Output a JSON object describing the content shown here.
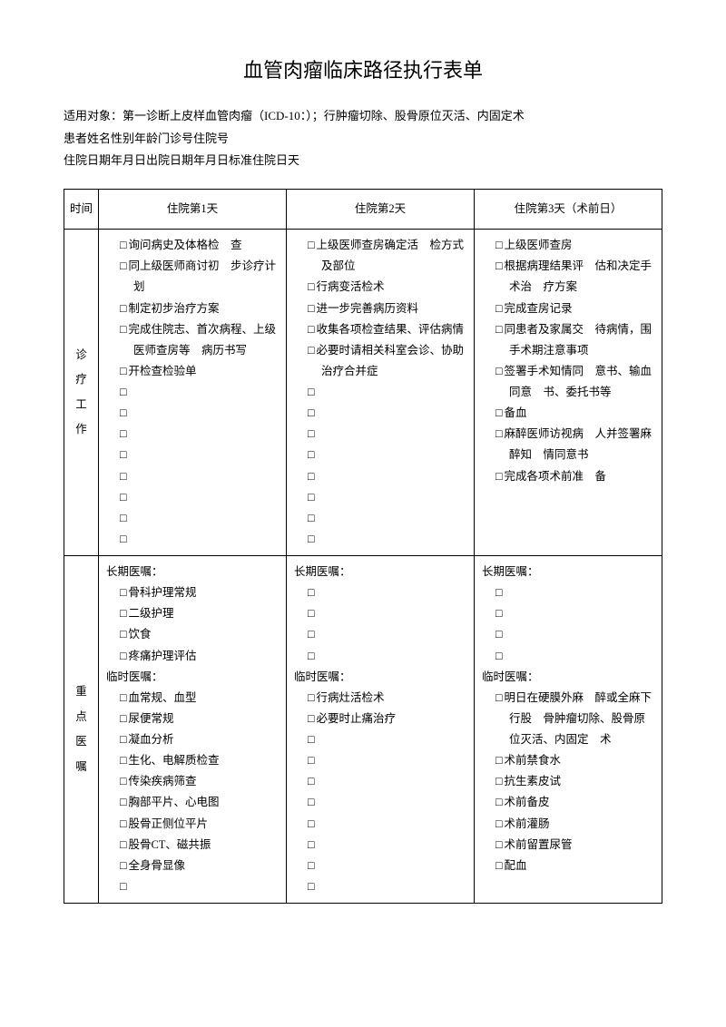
{
  "title": "血管肉瘤临床路径执行表单",
  "intro_lines": [
    "适用对象：第一诊断上皮样血管肉瘤（ICD-10：）；行肿瘤切除、股骨原位灭活、内固定术",
    "患者姓名性别年龄门诊号住院号",
    "住院日期年月日出院日期年月日标准住院日天"
  ],
  "columns": {
    "time": "时间",
    "day1": "住院第1天",
    "day2": "住院第2天",
    "day3": "住院第3天（术前日）"
  },
  "row_labels": {
    "work": [
      "诊",
      "疗",
      "工",
      "作"
    ],
    "orders": [
      "重",
      "点",
      "医",
      "嘱"
    ]
  },
  "work": {
    "day1": [
      {
        "t": "chk",
        "v": "询问病史及体格检　查"
      },
      {
        "t": "chk",
        "v": "同上级医师商讨初　步诊疗计划"
      },
      {
        "t": "chk",
        "v": "制定初步治疗方案"
      },
      {
        "t": "chk",
        "v": "完成住院志、首次病程、上级医师查房等　病历书写"
      },
      {
        "t": "chk",
        "v": "开检查检验单"
      },
      {
        "t": "chk",
        "v": ""
      },
      {
        "t": "chk",
        "v": ""
      },
      {
        "t": "chk",
        "v": ""
      },
      {
        "t": "chk",
        "v": ""
      },
      {
        "t": "chk",
        "v": ""
      },
      {
        "t": "chk",
        "v": ""
      },
      {
        "t": "chk",
        "v": ""
      },
      {
        "t": "chk",
        "v": ""
      }
    ],
    "day2": [
      {
        "t": "chk",
        "v": "上级医师查房确定活　检方式及部位"
      },
      {
        "t": "chk",
        "v": "行病变活检术"
      },
      {
        "t": "chk",
        "v": "进一步完善病历资料"
      },
      {
        "t": "chk",
        "v": "收集各项检查结果、评估病情"
      },
      {
        "t": "chk",
        "v": "必要时请相关科室会诊、协助治疗合并症"
      },
      {
        "t": "chk",
        "v": ""
      },
      {
        "t": "chk",
        "v": ""
      },
      {
        "t": "chk",
        "v": ""
      },
      {
        "t": "chk",
        "v": ""
      },
      {
        "t": "chk",
        "v": ""
      },
      {
        "t": "chk",
        "v": ""
      },
      {
        "t": "chk",
        "v": ""
      },
      {
        "t": "chk",
        "v": ""
      }
    ],
    "day3": [
      {
        "t": "chk",
        "v": "上级医师查房"
      },
      {
        "t": "chk",
        "v": "根据病理结果评　估和决定手术治　疗方案"
      },
      {
        "t": "chk",
        "v": "完成查房记录"
      },
      {
        "t": "chk",
        "v": "同患者及家属交　待病情，围手术期注意事项"
      },
      {
        "t": "chk",
        "v": "签署手术知情同　意书、输血同意　书、委托书等"
      },
      {
        "t": "chk",
        "v": "备血"
      },
      {
        "t": "chk",
        "v": "麻醉医师访视病　人并签署麻醉知　情同意书"
      },
      {
        "t": "chk",
        "v": "完成各项术前准　备"
      }
    ]
  },
  "orders": {
    "day1": [
      {
        "t": "hdr",
        "v": "长期医嘱："
      },
      {
        "t": "chk",
        "v": "骨科护理常规"
      },
      {
        "t": "chk",
        "v": "二级护理"
      },
      {
        "t": "chk",
        "v": "饮食"
      },
      {
        "t": "chk",
        "v": "疼痛护理评估"
      },
      {
        "t": "hdr",
        "v": "临时医嘱："
      },
      {
        "t": "chk",
        "v": "血常规、血型"
      },
      {
        "t": "chk",
        "v": "尿便常规"
      },
      {
        "t": "chk",
        "v": "凝血分析"
      },
      {
        "t": "chk",
        "v": "生化、电解质检查"
      },
      {
        "t": "chk",
        "v": "传染疾病筛查"
      },
      {
        "t": "chk",
        "v": "胸部平片、心电图"
      },
      {
        "t": "chk",
        "v": "股骨正侧位平片"
      },
      {
        "t": "chk",
        "v": "股骨CT、磁共振"
      },
      {
        "t": "chk",
        "v": "全身骨显像"
      },
      {
        "t": "chk",
        "v": ""
      }
    ],
    "day2": [
      {
        "t": "hdr",
        "v": "长期医嘱："
      },
      {
        "t": "chk",
        "v": ""
      },
      {
        "t": "chk",
        "v": ""
      },
      {
        "t": "chk",
        "v": ""
      },
      {
        "t": "chk",
        "v": ""
      },
      {
        "t": "hdr",
        "v": "临时医嘱："
      },
      {
        "t": "chk",
        "v": "行病灶活检术"
      },
      {
        "t": "chk",
        "v": "必要时止痛治疗"
      },
      {
        "t": "chk",
        "v": ""
      },
      {
        "t": "chk",
        "v": ""
      },
      {
        "t": "chk",
        "v": ""
      },
      {
        "t": "chk",
        "v": ""
      },
      {
        "t": "chk",
        "v": ""
      },
      {
        "t": "chk",
        "v": ""
      },
      {
        "t": "chk",
        "v": ""
      },
      {
        "t": "chk",
        "v": ""
      }
    ],
    "day3": [
      {
        "t": "hdr",
        "v": "长期医嘱："
      },
      {
        "t": "chk",
        "v": ""
      },
      {
        "t": "chk",
        "v": ""
      },
      {
        "t": "chk",
        "v": ""
      },
      {
        "t": "chk",
        "v": ""
      },
      {
        "t": "hdr",
        "v": "临时医嘱："
      },
      {
        "t": "chk",
        "v": "明日在硬膜外麻　醉或全麻下行股　骨肿瘤切除、股骨原位灭活、内固定　术"
      },
      {
        "t": "chk",
        "v": "术前禁食水"
      },
      {
        "t": "chk",
        "v": "抗生素皮试"
      },
      {
        "t": "chk",
        "v": "术前备皮"
      },
      {
        "t": "chk",
        "v": "术前灌肠"
      },
      {
        "t": "chk",
        "v": "术前留置尿管"
      },
      {
        "t": "chk",
        "v": "配血"
      }
    ]
  }
}
